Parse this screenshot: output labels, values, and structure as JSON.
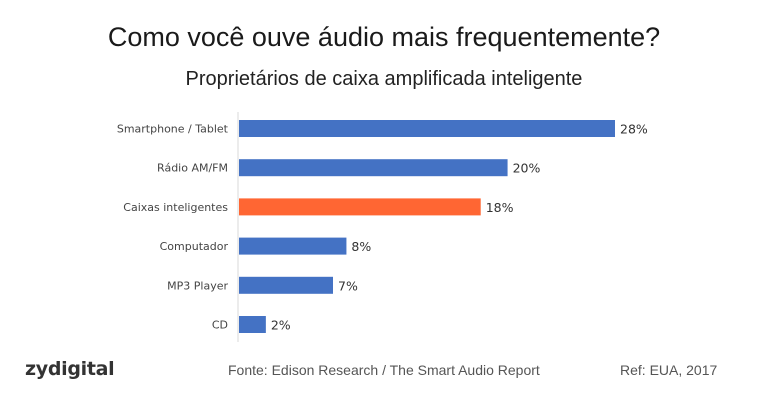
{
  "chart_data": {
    "type": "bar",
    "orientation": "horizontal",
    "title": "Como você ouve áudio mais frequentemente?",
    "subtitle": "Proprietários de caixa amplificada inteligente",
    "categories": [
      "Smartphone / Tablet",
      "Rádio AM/FM",
      "Caixas inteligentes",
      "Computador",
      "MP3 Player",
      "CD"
    ],
    "values": [
      28,
      20,
      18,
      8,
      7,
      2
    ],
    "value_labels": [
      "28%",
      "20%",
      "18%",
      "8%",
      "7%",
      "2%"
    ],
    "colors": [
      "#4472C4",
      "#4472C4",
      "#FF6633",
      "#4472C4",
      "#4472C4",
      "#4472C4"
    ],
    "grid": false,
    "legend": "none"
  },
  "footer": {
    "logo": "zydigital",
    "source": "Fonte: Edison Research / The Smart Audio Report",
    "ref": "Ref: EUA, 2017"
  }
}
